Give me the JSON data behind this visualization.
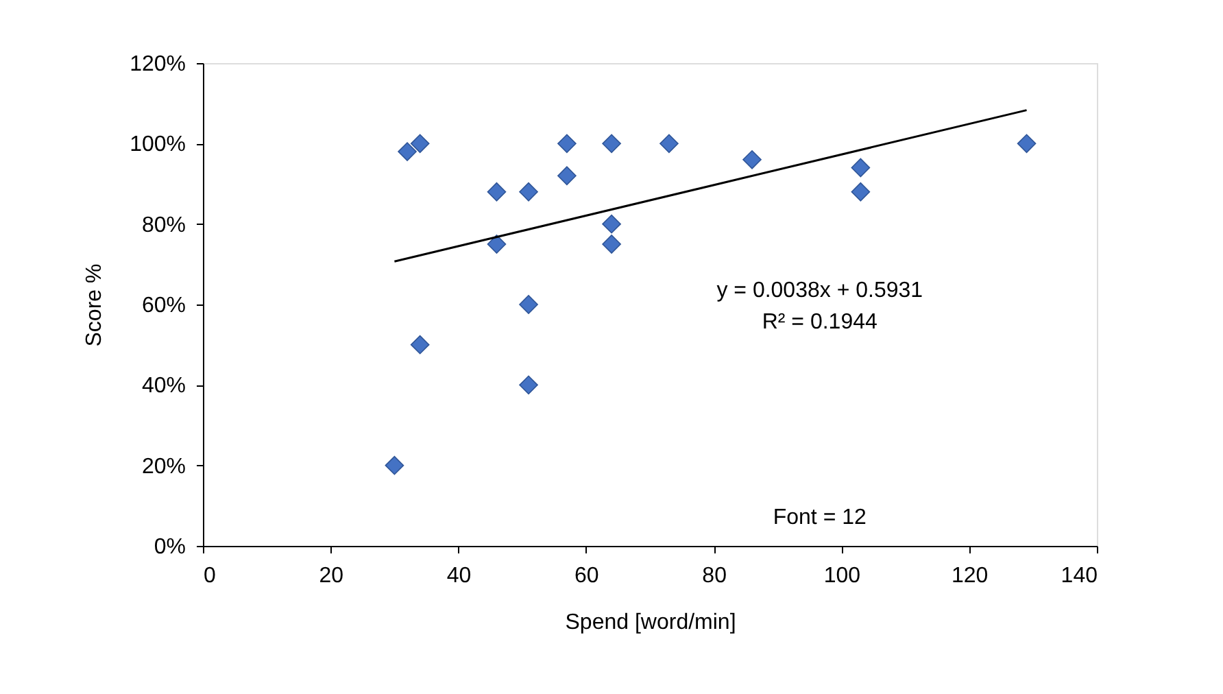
{
  "chart_data": {
    "type": "scatter",
    "xlabel": "Spend [word/min]",
    "ylabel": "Score %",
    "series": [
      {
        "color": "#4472c4",
        "marker": "diamond",
        "x": [
          30,
          32,
          34,
          34,
          46,
          46,
          51,
          51,
          51,
          57,
          57,
          64,
          64,
          64,
          73,
          86,
          103,
          103,
          129
        ],
        "values": [
          20,
          98,
          100,
          50,
          88,
          75,
          88,
          60,
          40,
          100,
          92,
          100,
          80,
          75,
          100,
          96,
          94,
          88,
          100
        ]
      },
      {
        "type": "line",
        "color": "#000000",
        "marker": "none",
        "line_style": "solid",
        "x": [
          30,
          129
        ],
        "values": [
          70.7,
          108.3
        ]
      }
    ],
    "xlim": [
      0,
      140
    ],
    "xticks": [
      0,
      20,
      40,
      60,
      80,
      100,
      120,
      140
    ],
    "ylim": [
      0,
      120
    ],
    "yticks": [
      {
        "value": 0,
        "label": "0%"
      },
      {
        "value": 20,
        "label": "20%"
      },
      {
        "value": 40,
        "label": "40%"
      },
      {
        "value": 60,
        "label": "60%"
      },
      {
        "value": 80,
        "label": "80%"
      },
      {
        "value": 100,
        "label": "100%"
      },
      {
        "value": 120,
        "label": "120%"
      }
    ],
    "annotations": [
      "y = 0.0038x + 0.5931",
      "R² = 0.1944",
      "Font = 12"
    ],
    "grid": false
  }
}
